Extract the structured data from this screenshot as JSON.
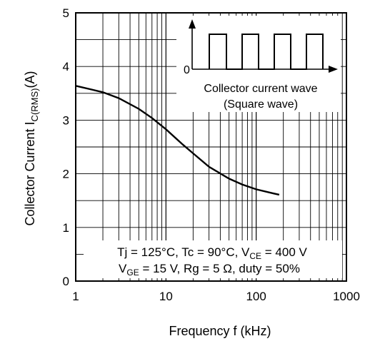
{
  "chart_data": {
    "type": "line",
    "xscale": "log",
    "xlim": [
      1,
      1000
    ],
    "ylim": [
      0,
      5
    ],
    "grid": true,
    "x_ticks": [
      "1",
      "10",
      "100",
      "1000"
    ],
    "y_ticks": [
      "0",
      "1",
      "2",
      "3",
      "4",
      "5"
    ],
    "xlabel": {
      "main": "Frequency   f (kHz)"
    },
    "ylabel": {
      "main": "Collector Current   I",
      "sub": "C(RMS)",
      "unit": "(A)"
    },
    "series": [
      {
        "x": [
          1,
          1.5,
          2,
          3,
          5,
          7,
          10,
          15,
          20,
          30,
          50,
          70,
          100,
          150,
          180
        ],
        "y": [
          3.64,
          3.57,
          3.52,
          3.41,
          3.21,
          3.04,
          2.83,
          2.56,
          2.38,
          2.13,
          1.91,
          1.8,
          1.71,
          1.64,
          1.61
        ]
      }
    ],
    "inset": {
      "zero_label": "0",
      "line1": "Collector current wave",
      "line2": "(Square wave)"
    },
    "conditions": {
      "line1": {
        "a": "Tj = 125°C, Tc = 90°C, V",
        "sub": "CE",
        "b": " = 400 V"
      },
      "line2": {
        "a": "V",
        "sub": "GE",
        "b": " = 15 V, Rg = 5 Ω, duty = 50%"
      }
    }
  }
}
